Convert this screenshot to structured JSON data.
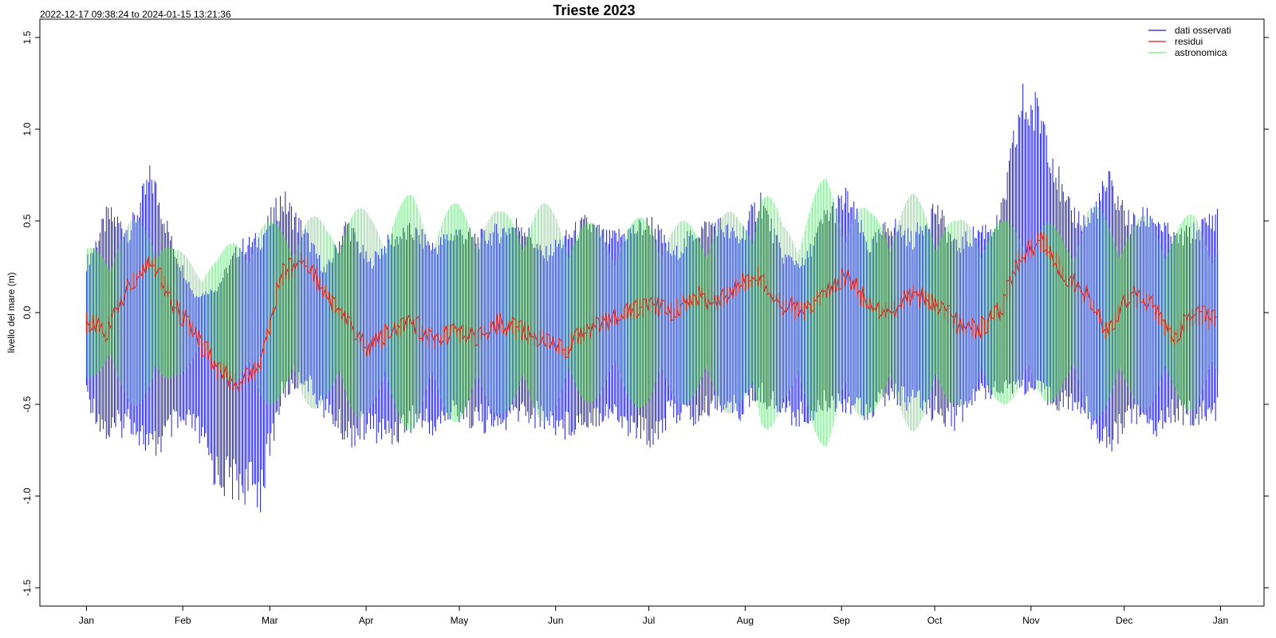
{
  "subtitle": "2022-12-17 09:38:24 to 2024-01-15 13:21:36",
  "colors": {
    "observed": "#1f1fd6",
    "residual": "#e01e1e",
    "astronomical": "#7fe38f"
  },
  "chart_data": {
    "type": "line",
    "title": "Trieste 2023",
    "xlabel": "",
    "ylabel": "livello del mare (m)",
    "xlim": [
      "2022-12-17",
      "2024-01-15"
    ],
    "ylim": [
      -1.6,
      1.6
    ],
    "x_ticks": [
      "Jan",
      "Feb",
      "Mar",
      "Apr",
      "May",
      "Jun",
      "Jul",
      "Aug",
      "Sep",
      "Oct",
      "Nov",
      "Dec",
      "Jan"
    ],
    "y_ticks": [
      "-1.5",
      "-1.0",
      "-0.5",
      "0.0",
      "0.5",
      "1.0",
      "1.5"
    ],
    "legend_position": "top-right",
    "series": [
      {
        "name": "dati osservati",
        "note": "envelope (daily max / min, m)",
        "dates": [
          "2023-01-01",
          "2023-01-08",
          "2023-01-15",
          "2023-01-22",
          "2023-01-29",
          "2023-02-05",
          "2023-02-12",
          "2023-02-19",
          "2023-02-26",
          "2023-03-05",
          "2023-03-12",
          "2023-03-19",
          "2023-03-26",
          "2023-04-02",
          "2023-04-09",
          "2023-04-16",
          "2023-04-23",
          "2023-04-30",
          "2023-05-07",
          "2023-05-14",
          "2023-05-21",
          "2023-05-28",
          "2023-06-04",
          "2023-06-11",
          "2023-06-18",
          "2023-06-25",
          "2023-07-02",
          "2023-07-09",
          "2023-07-16",
          "2023-07-23",
          "2023-07-30",
          "2023-08-06",
          "2023-08-13",
          "2023-08-20",
          "2023-08-27",
          "2023-09-03",
          "2023-09-10",
          "2023-09-17",
          "2023-09-24",
          "2023-10-01",
          "2023-10-08",
          "2023-10-15",
          "2023-10-22",
          "2023-10-29",
          "2023-11-05",
          "2023-11-12",
          "2023-11-19",
          "2023-11-26",
          "2023-12-03",
          "2023-12-10",
          "2023-12-17",
          "2023-12-24",
          "2023-12-31"
        ],
        "max": [
          0.3,
          0.6,
          0.5,
          0.84,
          0.4,
          0.1,
          0.15,
          0.4,
          0.45,
          0.7,
          0.5,
          0.25,
          0.55,
          0.3,
          0.45,
          0.5,
          0.4,
          0.5,
          0.45,
          0.5,
          0.55,
          0.35,
          0.45,
          0.55,
          0.45,
          0.5,
          0.55,
          0.35,
          0.5,
          0.55,
          0.45,
          0.7,
          0.35,
          0.3,
          0.6,
          0.7,
          0.4,
          0.55,
          0.45,
          0.65,
          0.4,
          0.5,
          0.55,
          1.28,
          1.2,
          0.65,
          0.55,
          0.8,
          0.55,
          0.6,
          0.45,
          0.5,
          0.6
        ],
        "min": [
          -0.5,
          -0.75,
          -0.65,
          -0.85,
          -0.7,
          -0.7,
          -1.0,
          -1.05,
          -1.09,
          -0.5,
          -0.4,
          -0.6,
          -0.75,
          -0.7,
          -0.75,
          -0.65,
          -0.7,
          -0.6,
          -0.65,
          -0.7,
          -0.6,
          -0.65,
          -0.7,
          -0.65,
          -0.6,
          -0.7,
          -0.75,
          -0.6,
          -0.65,
          -0.55,
          -0.6,
          -0.5,
          -0.6,
          -0.65,
          -0.55,
          -0.55,
          -0.6,
          -0.5,
          -0.55,
          -0.6,
          -0.65,
          -0.5,
          -0.45,
          -0.45,
          -0.5,
          -0.55,
          -0.6,
          -0.82,
          -0.6,
          -0.7,
          -0.6,
          -0.65,
          -0.6
        ]
      },
      {
        "name": "residui",
        "note": "approximate daily mean (m)",
        "dates": [
          "2023-01-01",
          "2023-01-08",
          "2023-01-15",
          "2023-01-22",
          "2023-01-29",
          "2023-02-05",
          "2023-02-12",
          "2023-02-19",
          "2023-02-26",
          "2023-03-05",
          "2023-03-12",
          "2023-03-19",
          "2023-03-26",
          "2023-04-02",
          "2023-04-09",
          "2023-04-16",
          "2023-04-23",
          "2023-04-30",
          "2023-05-07",
          "2023-05-14",
          "2023-05-21",
          "2023-05-28",
          "2023-06-04",
          "2023-06-11",
          "2023-06-18",
          "2023-06-25",
          "2023-07-02",
          "2023-07-09",
          "2023-07-16",
          "2023-07-23",
          "2023-07-30",
          "2023-08-06",
          "2023-08-13",
          "2023-08-20",
          "2023-08-27",
          "2023-09-03",
          "2023-09-10",
          "2023-09-17",
          "2023-09-24",
          "2023-10-01",
          "2023-10-08",
          "2023-10-15",
          "2023-10-22",
          "2023-10-29",
          "2023-11-05",
          "2023-11-12",
          "2023-11-19",
          "2023-11-26",
          "2023-12-03",
          "2023-12-10",
          "2023-12-17",
          "2023-12-24",
          "2023-12-31"
        ],
        "values": [
          -0.05,
          -0.1,
          0.15,
          0.3,
          0.05,
          -0.1,
          -0.3,
          -0.4,
          -0.3,
          0.2,
          0.3,
          0.1,
          -0.05,
          -0.2,
          -0.1,
          -0.05,
          -0.15,
          -0.1,
          -0.15,
          -0.05,
          -0.1,
          -0.15,
          -0.2,
          -0.1,
          -0.05,
          0.0,
          0.05,
          0.0,
          0.1,
          0.05,
          0.15,
          0.2,
          0.05,
          0.0,
          0.1,
          0.2,
          0.05,
          0.0,
          0.1,
          0.05,
          -0.05,
          -0.1,
          0.0,
          0.3,
          0.4,
          0.2,
          0.1,
          -0.1,
          0.1,
          0.05,
          -0.15,
          0.0,
          -0.05
        ]
      },
      {
        "name": "astronomica",
        "note": "spring/neap amplitude (m)",
        "dates": [
          "2023-01-01",
          "2023-01-08",
          "2023-01-15",
          "2023-01-22",
          "2023-01-29",
          "2023-02-05",
          "2023-02-12",
          "2023-02-19",
          "2023-02-26",
          "2023-03-05",
          "2023-03-12",
          "2023-03-19",
          "2023-03-26",
          "2023-04-02",
          "2023-04-09",
          "2023-04-16",
          "2023-04-23",
          "2023-04-30",
          "2023-05-07",
          "2023-05-14",
          "2023-05-21",
          "2023-05-28",
          "2023-06-04",
          "2023-06-11",
          "2023-06-18",
          "2023-06-25",
          "2023-07-02",
          "2023-07-09",
          "2023-07-16",
          "2023-07-23",
          "2023-07-30",
          "2023-08-06",
          "2023-08-13",
          "2023-08-20",
          "2023-08-27",
          "2023-09-03",
          "2023-09-10",
          "2023-09-17",
          "2023-09-24",
          "2023-10-01",
          "2023-10-08",
          "2023-10-15",
          "2023-10-22",
          "2023-10-29",
          "2023-11-05",
          "2023-11-12",
          "2023-11-19",
          "2023-11-26",
          "2023-12-03",
          "2023-12-10",
          "2023-12-17",
          "2023-12-24",
          "2023-12-31"
        ],
        "values": [
          0.35,
          0.4,
          0.5,
          0.55,
          0.35,
          0.3,
          0.3,
          0.45,
          0.5,
          0.5,
          0.55,
          0.5,
          0.6,
          0.55,
          0.6,
          0.65,
          0.55,
          0.6,
          0.6,
          0.55,
          0.6,
          0.6,
          0.55,
          0.5,
          0.45,
          0.5,
          0.55,
          0.5,
          0.5,
          0.55,
          0.55,
          0.75,
          0.5,
          0.6,
          0.75,
          0.65,
          0.55,
          0.6,
          0.65,
          0.6,
          0.5,
          0.55,
          0.5,
          0.5,
          0.5,
          0.45,
          0.6,
          0.55,
          0.5,
          0.55,
          0.5,
          0.55,
          0.45
        ]
      }
    ]
  }
}
